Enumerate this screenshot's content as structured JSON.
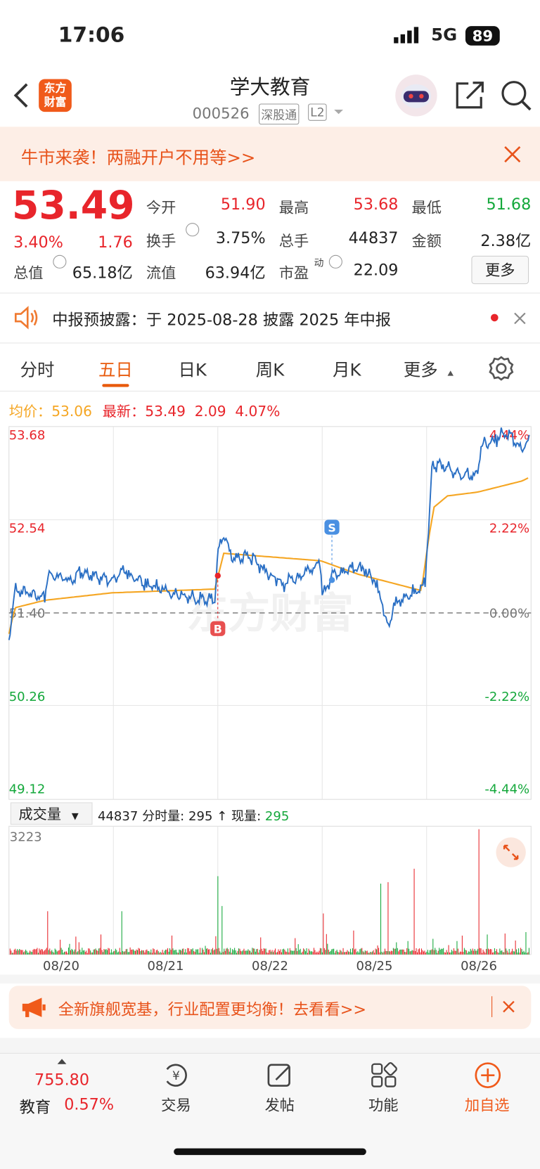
{
  "status_bar": {
    "time": "17:06",
    "network": "5G",
    "battery": "89"
  },
  "header": {
    "logo": [
      "东方",
      "财富"
    ],
    "title": "学大教育",
    "code": "000526",
    "badges": [
      "深股通",
      "L2"
    ]
  },
  "promo_banner": "牛市来袭！两融开户不用等>>",
  "quote": {
    "price": "53.49",
    "change_pct": "3.40%",
    "change": "1.76",
    "stats": [
      {
        "label": "今开",
        "value": "51.90"
      },
      {
        "label": "最高",
        "value": "53.68"
      },
      {
        "label": "最低",
        "value": "51.68"
      },
      {
        "label": "换手",
        "value": "3.75%"
      },
      {
        "label": "总手",
        "value": "44837"
      },
      {
        "label": "金额",
        "value": "2.38亿"
      },
      {
        "label": "总值",
        "value": "65.18亿"
      },
      {
        "label": "流值",
        "value": "63.94亿"
      },
      {
        "label": "市盈",
        "sup": "动",
        "value": "22.09"
      }
    ],
    "more": "更多"
  },
  "notice": "中报预披露：于 2025-08-28 披露 2025 年中报",
  "tabs": [
    "分时",
    "五日",
    "日K",
    "周K",
    "月K",
    "更多"
  ],
  "chart": {
    "legend": {
      "avg_label": "均价：",
      "avg": "53.06",
      "latest_label": "最新：",
      "latest": "53.49",
      "change": "2.09",
      "change_pct": "4.07%"
    },
    "price_labels": [
      "53.68",
      "52.54",
      "51.40",
      "50.26",
      "49.12"
    ],
    "pct_labels": [
      "4.44%",
      "2.22%",
      "0.00%",
      "-2.22%",
      "-4.44%"
    ],
    "markers": [
      "B",
      "S"
    ],
    "watermark": "东方财富",
    "volume": {
      "selector": "成交量",
      "total": "44837",
      "minute_label": "分时量:",
      "minute": "295",
      "arrow": "↑",
      "current_label": "现量:",
      "current": "295",
      "max": "3223"
    },
    "dates": [
      "08/20",
      "08/21",
      "08/22",
      "08/25",
      "08/26"
    ]
  },
  "ad_banner": "全新旗舰宽基，行业配置更均衡！去看看>>",
  "bottom_nav": {
    "index_value": "755.80",
    "index_name": "教育",
    "index_pct": "0.57%",
    "items": [
      "交易",
      "发帖",
      "功能",
      "加自选"
    ]
  }
}
